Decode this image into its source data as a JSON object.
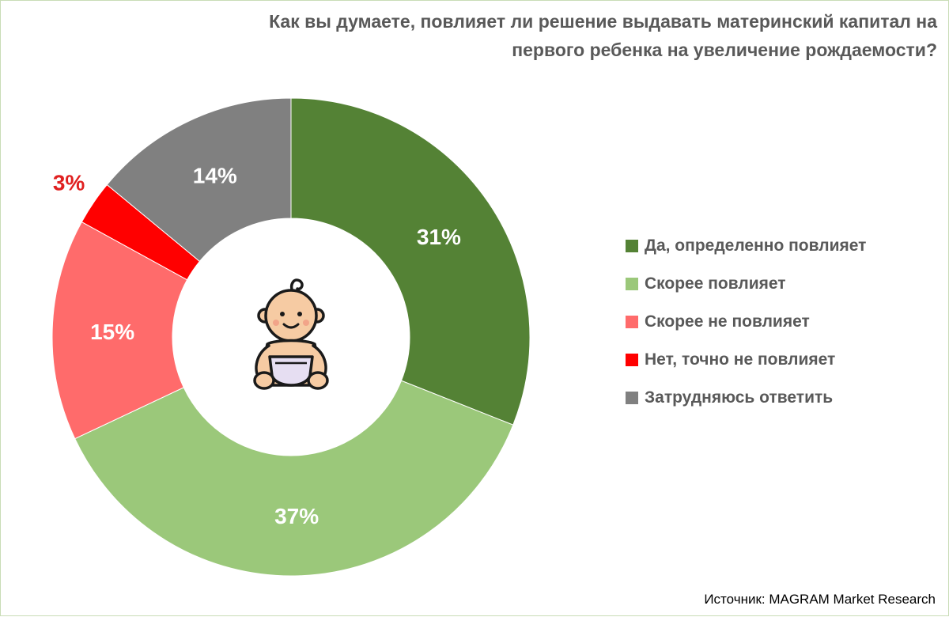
{
  "chart_data": {
    "type": "pie",
    "title_lines": [
      "Как вы думаете, повлияет ли решение выдавать материнский капитал на",
      "первого ребенка на увеличение рождаемости?"
    ],
    "categories": [
      "Да, определенно повлияет",
      "Скорее повлияет",
      "Скорее не повлияет",
      "Нет, точно не повлияет",
      "Затрудняюсь ответить"
    ],
    "values": [
      31,
      37,
      15,
      3,
      14
    ],
    "data_labels": [
      "31%",
      "37%",
      "15%",
      "3%",
      "14%"
    ],
    "colors": [
      "#548235",
      "#9bc87a",
      "#ff6b6b",
      "#ff0000",
      "#808080"
    ],
    "label_colors": [
      "#ffffff",
      "#ffffff",
      "#ffffff",
      "#e02020",
      "#ffffff"
    ],
    "donut": true,
    "start": "top",
    "direction": "clockwise",
    "legend_position": "right",
    "center_icon": "baby-in-diaper-icon"
  },
  "source": "Источник: MAGRAM Market Research"
}
